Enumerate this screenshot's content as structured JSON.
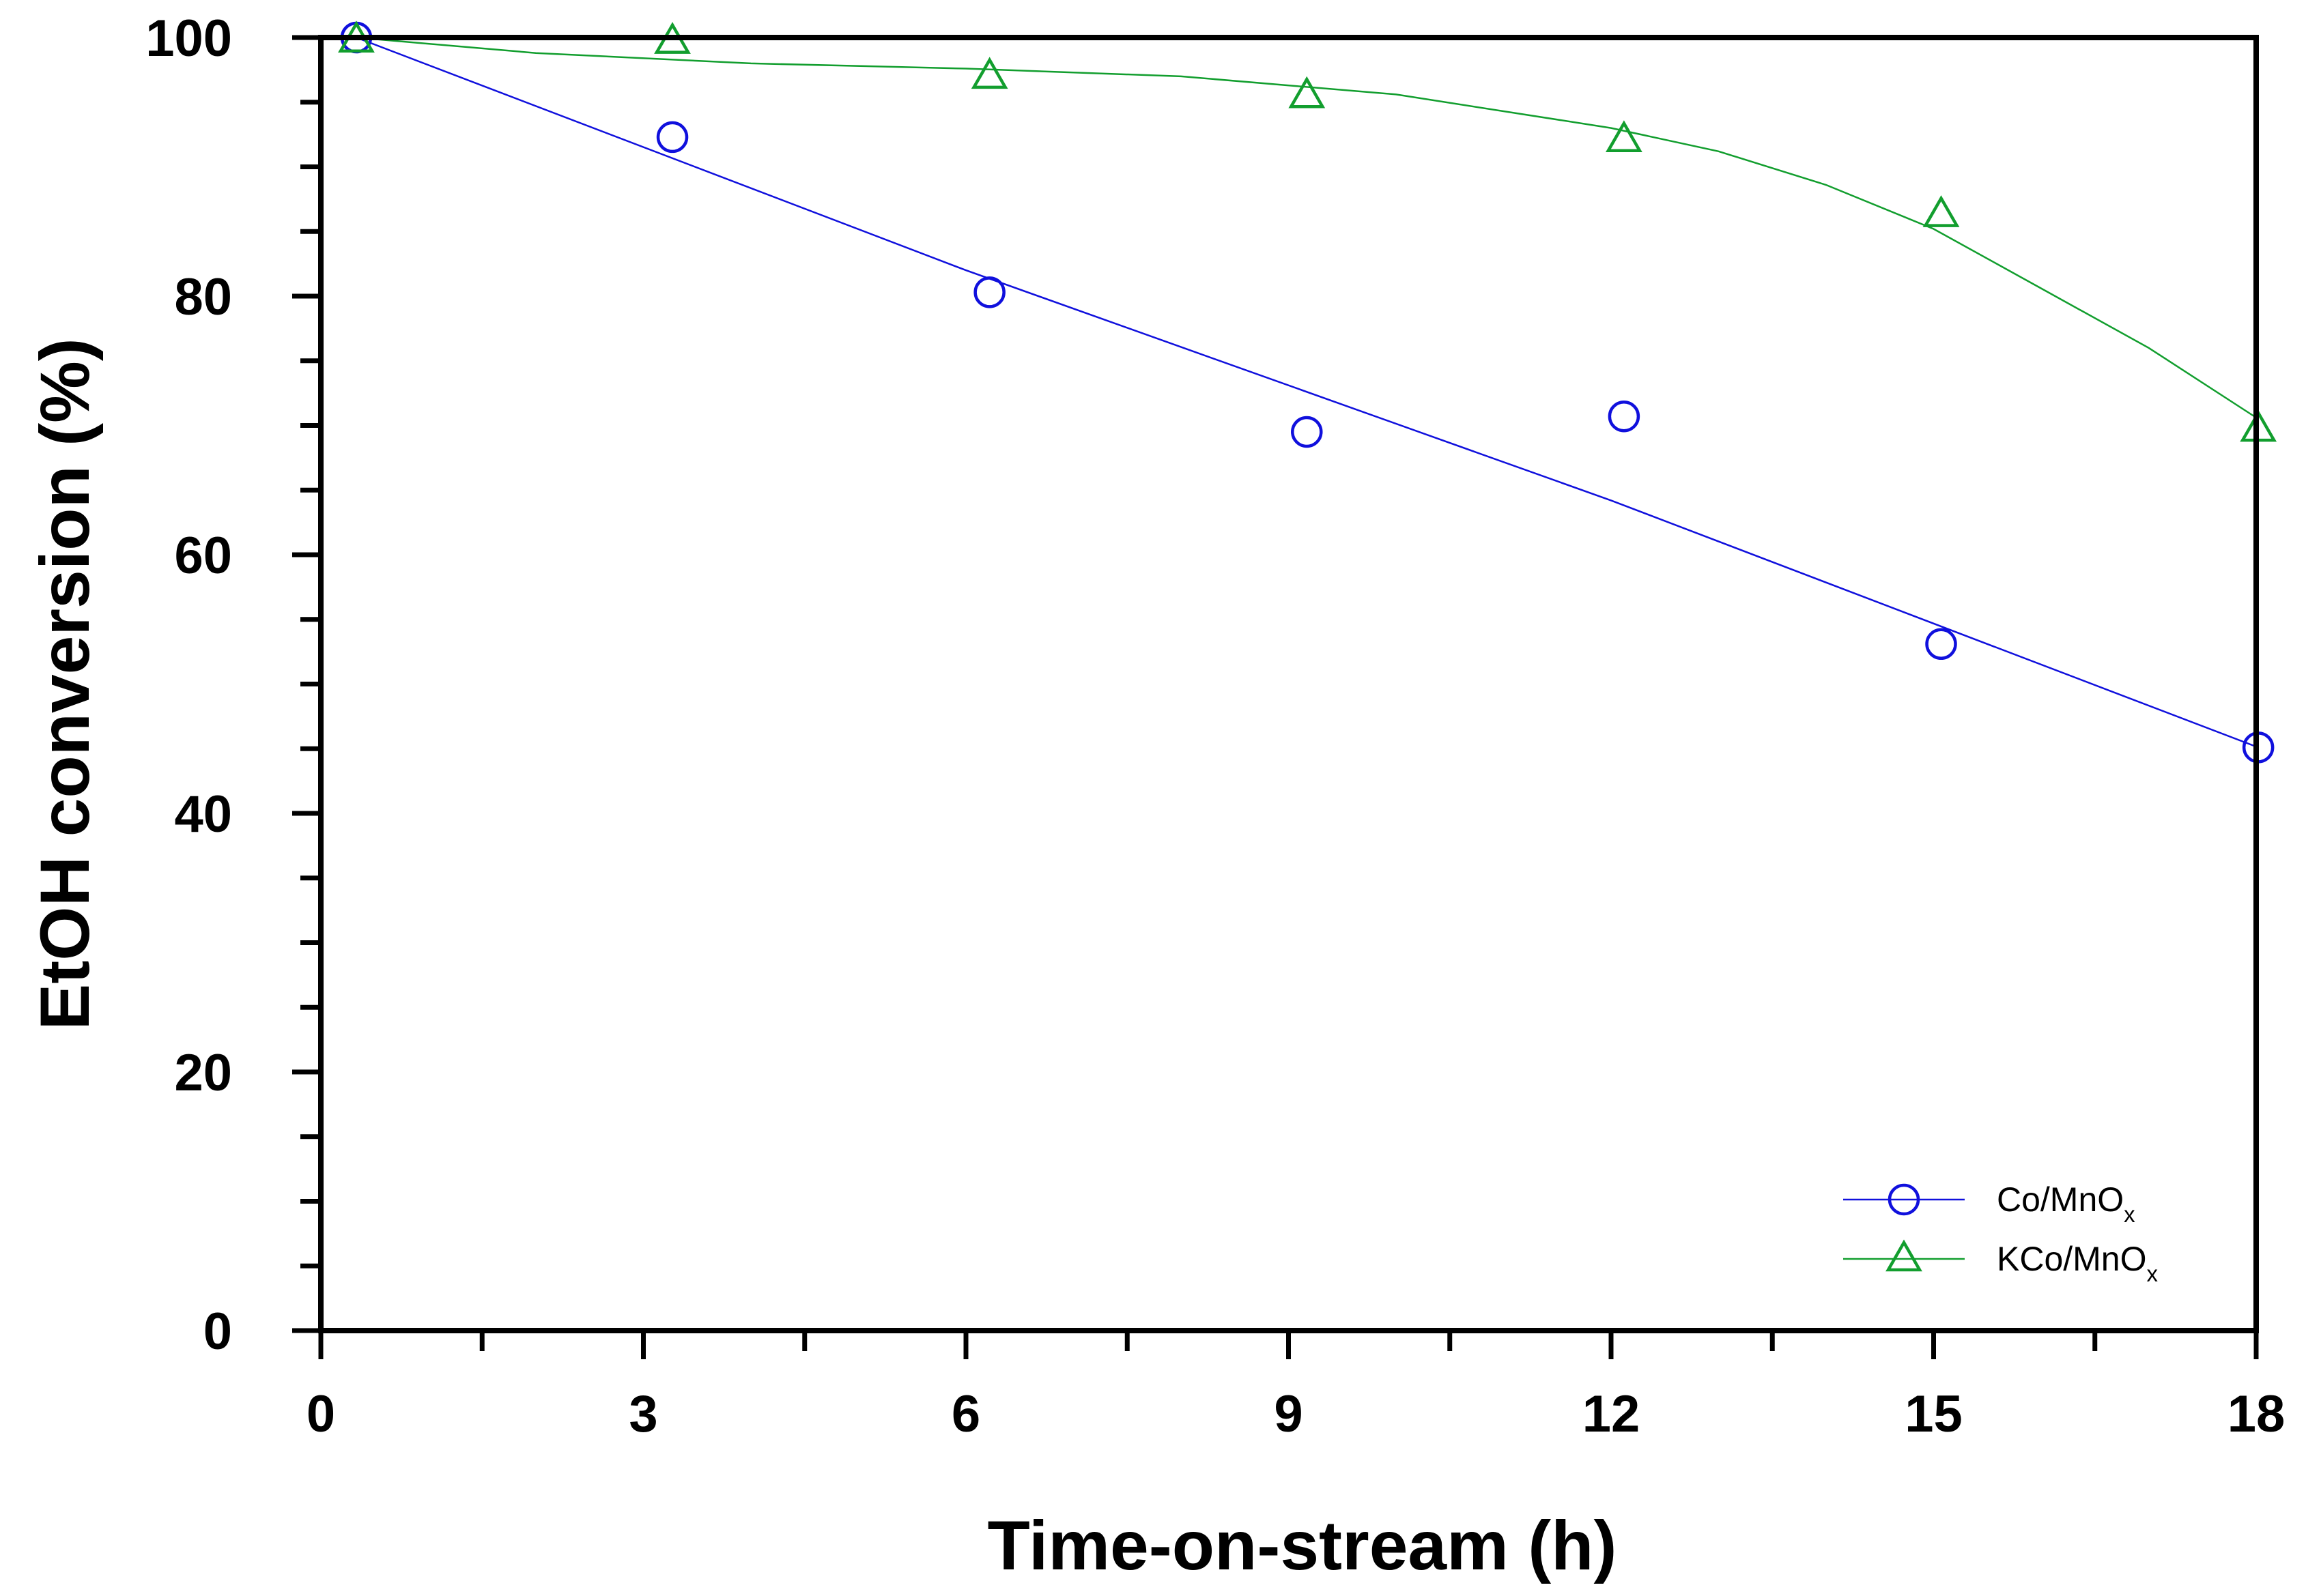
{
  "chart_data": {
    "type": "scatter",
    "title": "",
    "xlabel": "Time-on-stream (h)",
    "ylabel": "EtOH conversion (%)",
    "xlim": [
      0,
      18
    ],
    "ylim": [
      0,
      100
    ],
    "x_ticks": [
      0,
      3,
      6,
      9,
      12,
      15,
      18
    ],
    "x_tick_labels": [
      "0",
      "3",
      "6",
      "9",
      "12",
      "15",
      "18"
    ],
    "y_ticks": [
      0,
      20,
      40,
      60,
      80,
      100
    ],
    "y_tick_labels": [
      "0",
      "20",
      "40",
      "60",
      "80",
      "100"
    ],
    "grid": false,
    "legend_position": "bottom-right",
    "series": [
      {
        "name": "Co/MnOx",
        "legend_main": "Co/MnO",
        "legend_sub": "x",
        "marker": "circle",
        "color": "#1010dd",
        "x": [
          0.33,
          3.27,
          6.22,
          9.17,
          12.12,
          15.07,
          18.02
        ],
        "y": [
          100,
          92.3,
          80.3,
          69.5,
          70.7,
          53.1,
          45.1
        ],
        "fit_line": [
          [
            0.33,
            100
          ],
          [
            6.0,
            82.0
          ],
          [
            12.0,
            64.2
          ],
          [
            18.02,
            45.1
          ]
        ]
      },
      {
        "name": "KCo/MnOx",
        "legend_main": "KCo/MnO",
        "legend_sub": "x",
        "marker": "triangle",
        "color": "#129e2e",
        "x": [
          0.33,
          3.27,
          6.22,
          9.17,
          12.12,
          15.07,
          18.02
        ],
        "y": [
          99.8,
          99.7,
          97.0,
          95.5,
          92.1,
          86.3,
          69.7
        ],
        "fit_line": [
          [
            0.33,
            100
          ],
          [
            2,
            98.8
          ],
          [
            4,
            98.0
          ],
          [
            6,
            97.6
          ],
          [
            8,
            97.0
          ],
          [
            10,
            95.6
          ],
          [
            12,
            93.0
          ],
          [
            13,
            91.2
          ],
          [
            14,
            88.6
          ],
          [
            15,
            85.2
          ],
          [
            16,
            80.6
          ],
          [
            17,
            76.0
          ],
          [
            18.02,
            70.5
          ]
        ]
      }
    ]
  }
}
